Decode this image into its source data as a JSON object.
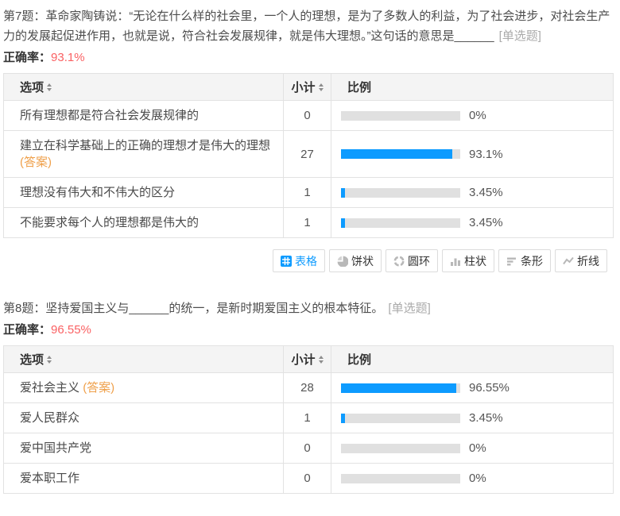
{
  "colors": {
    "bar_blue": "#0d9bff",
    "bar_track_gray": "#e0e0e0",
    "accuracy_red": "#fa6163",
    "answer_orange": "#efa04b",
    "header_bg": "#f4f4f4",
    "border_gray": "#e2e2e2"
  },
  "questions": [
    {
      "title": "第7题：革命家陶铸说：“无论在什么样的社会里，一个人的理想，是为了多数人的利益，为了社会进步，对社会生产力的发展起促进作用，也就是说，符合社会发展规律，就是伟大理想。”这句话的意思是______",
      "type_tag": "[单选题]",
      "accuracy_label": "正确率：",
      "accuracy_value": "93.1%",
      "headers": {
        "option": "选项",
        "count": "小计",
        "ratio": "比例"
      },
      "rows": [
        {
          "option": "所有理想都是符合社会发展规律的",
          "answer_tag": "",
          "count": "0",
          "percent": "0%",
          "width": 0
        },
        {
          "option": "建立在科学基础上的正确的理想才是伟大的理想",
          "answer_tag": "(答案)",
          "count": "27",
          "percent": "93.1%",
          "width": 93.1
        },
        {
          "option": "理想没有伟大和不伟大的区分",
          "answer_tag": "",
          "count": "1",
          "percent": "3.45%",
          "width": 3.45
        },
        {
          "option": "不能要求每个人的理想都是伟大的",
          "answer_tag": "",
          "count": "1",
          "percent": "3.45%",
          "width": 3.45
        }
      ],
      "chart_tabs": [
        {
          "label": "表格",
          "active": true
        },
        {
          "label": "饼状",
          "active": false
        },
        {
          "label": "圆环",
          "active": false
        },
        {
          "label": "柱状",
          "active": false
        },
        {
          "label": "条形",
          "active": false
        },
        {
          "label": "折线",
          "active": false
        }
      ]
    },
    {
      "title": "第8题：坚持爱国主义与______的统一，是新时期爱国主义的根本特征。",
      "type_tag": "[单选题]",
      "accuracy_label": "正确率：",
      "accuracy_value": "96.55%",
      "headers": {
        "option": "选项",
        "count": "小计",
        "ratio": "比例"
      },
      "rows": [
        {
          "option": "爱社会主义",
          "answer_tag": "(答案)",
          "count": "28",
          "percent": "96.55%",
          "width": 96.55
        },
        {
          "option": "爱人民群众",
          "answer_tag": "",
          "count": "1",
          "percent": "3.45%",
          "width": 3.45
        },
        {
          "option": "爱中国共产党",
          "answer_tag": "",
          "count": "0",
          "percent": "0%",
          "width": 0
        },
        {
          "option": "爱本职工作",
          "answer_tag": "",
          "count": "0",
          "percent": "0%",
          "width": 0
        }
      ]
    }
  ]
}
